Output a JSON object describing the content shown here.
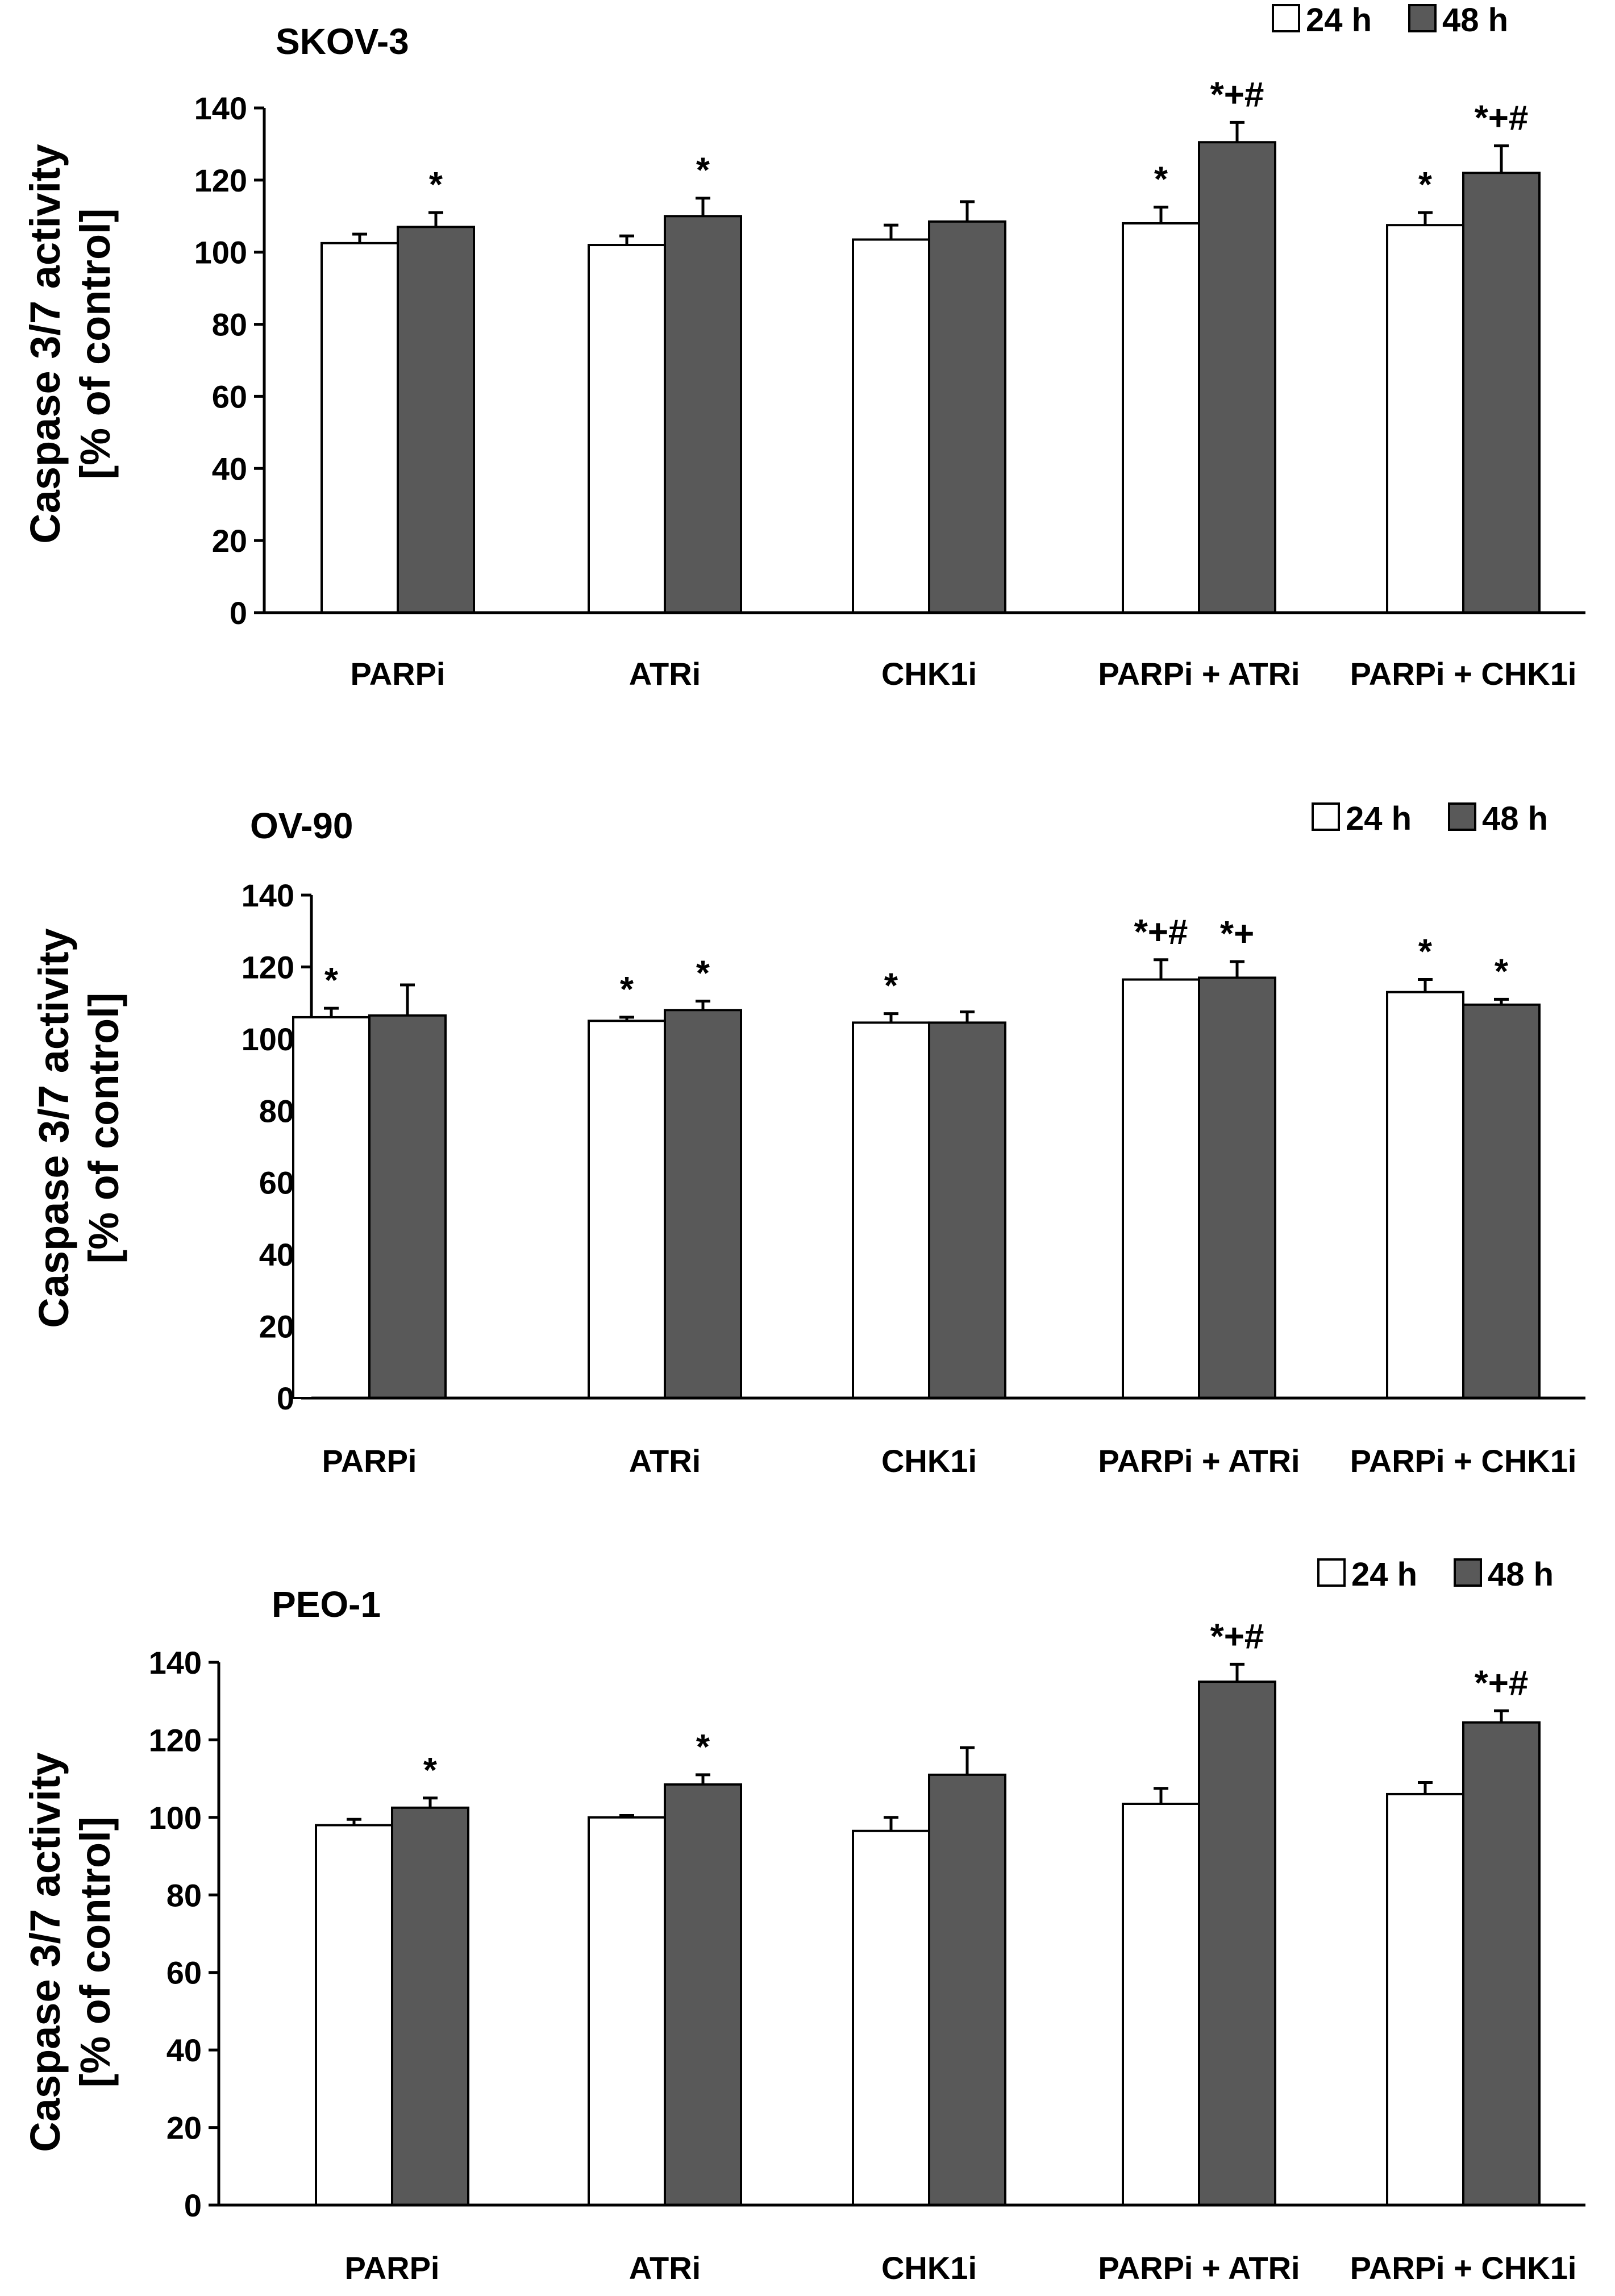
{
  "chart_data": [
    {
      "type": "bar",
      "title": "SKOV-3",
      "ylabel_line1": "Caspase 3/7 activity",
      "ylabel_line2": "[% of control]",
      "ylim": [
        0,
        140
      ],
      "yticks": [
        "0",
        "20",
        "40",
        "60",
        "80",
        "100",
        "120",
        "140"
      ],
      "ytick_values": [
        0,
        20,
        40,
        60,
        80,
        100,
        120,
        140
      ],
      "categories": [
        "PARPi",
        "ATRi",
        "CHK1i",
        "PARPi + ATRi",
        "PARPi + CHK1i"
      ],
      "legend": {
        "label_24h": "24 h",
        "label_48h": "48 h"
      },
      "series": [
        {
          "name": "24 h",
          "color": "#ffffff",
          "values": [
            102.5,
            102,
            103.5,
            108,
            107.5
          ],
          "errors": [
            2.5,
            2.5,
            4,
            4.5,
            3.5
          ],
          "annotations": [
            "",
            "",
            "",
            "*",
            "*"
          ]
        },
        {
          "name": "48 h",
          "color": "#595959",
          "values": [
            107,
            110,
            108.5,
            130.5,
            122
          ],
          "errors": [
            4,
            5,
            5.5,
            5.5,
            7.5
          ],
          "annotations": [
            "*",
            "*",
            "",
            "*+#",
            "*+#"
          ]
        }
      ]
    },
    {
      "type": "bar",
      "title": "OV-90",
      "ylabel_line1": "Caspase 3/7 activity",
      "ylabel_line2": "[% of control]",
      "ylim": [
        0,
        140
      ],
      "yticks": [
        "0",
        "20",
        "40",
        "60",
        "80",
        "100",
        "120",
        "140"
      ],
      "ytick_values": [
        0,
        20,
        40,
        60,
        80,
        100,
        120,
        140
      ],
      "categories": [
        "PARPi",
        "ATRi",
        "CHK1i",
        "PARPi + ATRi",
        "PARPi + CHK1i"
      ],
      "legend": {
        "label_24h": "24 h",
        "label_48h": "48 h"
      },
      "series": [
        {
          "name": "24 h",
          "color": "#ffffff",
          "values": [
            106,
            105,
            104.5,
            116.5,
            113
          ],
          "errors": [
            2.5,
            1,
            2.5,
            5.5,
            3.5
          ],
          "annotations": [
            "*",
            "*",
            "*",
            "*+#",
            "*"
          ]
        },
        {
          "name": "48 h",
          "color": "#595959",
          "values": [
            106.5,
            108,
            104.5,
            117,
            109.5
          ],
          "errors": [
            8.5,
            2.5,
            3,
            4.5,
            1.5
          ],
          "annotations": [
            "",
            "*",
            "",
            "*+",
            "*"
          ]
        }
      ]
    },
    {
      "type": "bar",
      "title": "PEO-1",
      "ylabel_line1": "Caspase 3/7 activity",
      "ylabel_line2": "[% of control]",
      "ylim": [
        0,
        140
      ],
      "yticks": [
        "0",
        "20",
        "40",
        "60",
        "80",
        "100",
        "120",
        "140"
      ],
      "ytick_values": [
        0,
        20,
        40,
        60,
        80,
        100,
        120,
        140
      ],
      "categories": [
        "PARPi",
        "ATRi",
        "CHK1i",
        "PARPi + ATRi",
        "PARPi + CHK1i"
      ],
      "legend": {
        "label_24h": "24 h",
        "label_48h": "48 h"
      },
      "series": [
        {
          "name": "24 h",
          "color": "#ffffff",
          "values": [
            98,
            100,
            96.5,
            103.5,
            106
          ],
          "errors": [
            1.5,
            0.5,
            3.5,
            4,
            3
          ],
          "annotations": [
            "",
            "",
            "",
            "",
            ""
          ]
        },
        {
          "name": "48 h",
          "color": "#595959",
          "values": [
            102.5,
            108.5,
            111,
            135,
            124.5
          ],
          "errors": [
            2.5,
            2.5,
            7,
            4.5,
            3
          ],
          "annotations": [
            "*",
            "*",
            "",
            "*+#",
            "*+#"
          ]
        }
      ]
    }
  ]
}
